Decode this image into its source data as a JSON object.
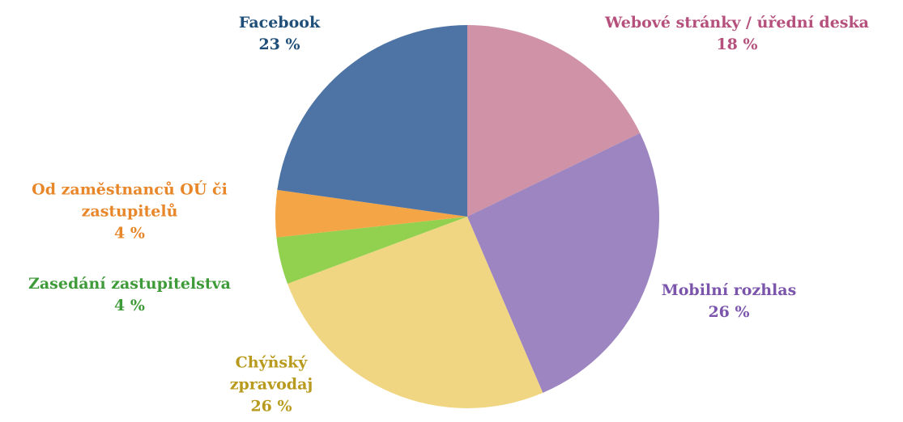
{
  "chart_data": {
    "type": "pie",
    "categories": [
      "Webové stránky / úřední deska",
      "Mobilní rozhlas",
      "Chýňský zpravodaj",
      "Zasedání zastupitelstva",
      "Od zaměstnanců OÚ či zastupitelů",
      "Facebook"
    ],
    "values": [
      18,
      26,
      26,
      4,
      4,
      23
    ],
    "value_labels": [
      "18 %",
      "26 %",
      "26 %",
      "4 %",
      "4 %",
      "23 %"
    ],
    "colors": [
      "#d092a7",
      "#9c85c0",
      "#f0d682",
      "#92d050",
      "#f4a646",
      "#4e74a5"
    ],
    "label_colors": [
      "#b5507c",
      "#7b55ab",
      "#b89a1e",
      "#3f9b39",
      "#e8872a",
      "#1f4e79"
    ]
  }
}
